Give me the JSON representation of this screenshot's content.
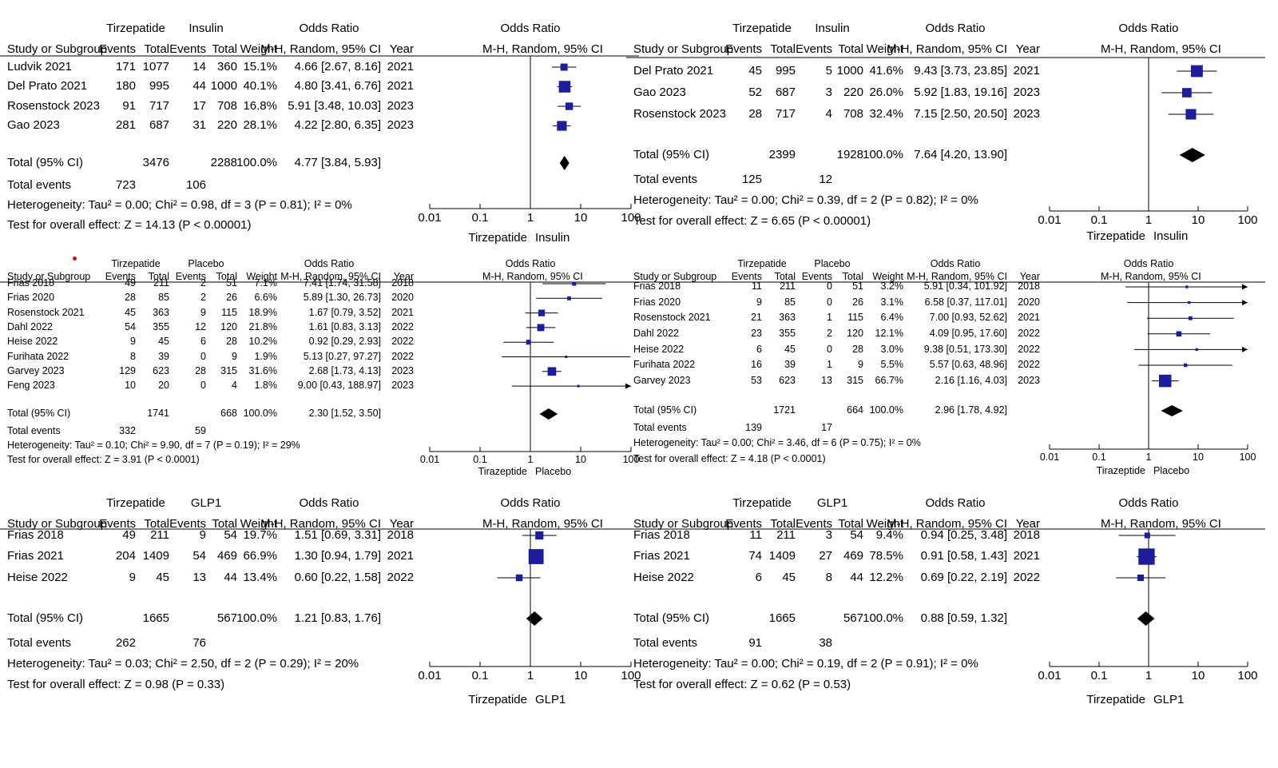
{
  "annotations": {
    "marker_color": "#e00000"
  },
  "chart_data": [
    {
      "type": "forest",
      "col_headers": {
        "study": "Study or Subgroup",
        "events": "Events",
        "total": "Total",
        "weight": "Weight",
        "method": "M-H, Random, 95% CI",
        "year": "Year",
        "or": "Odds Ratio"
      },
      "group1": "Tirzepatide",
      "group2": "Insulin",
      "studies": [
        {
          "name": "Ludvik 2021",
          "e1": "171",
          "t1": "1077",
          "e2": "14",
          "t2": "360",
          "weight_text": "15.1%",
          "ci_text": "4.66 [2.67, 8.16]",
          "year": "2021",
          "or": 4.66,
          "lo": 2.67,
          "hi": 8.16,
          "w": 15.1
        },
        {
          "name": "Del Prato 2021",
          "e1": "180",
          "t1": "995",
          "e2": "44",
          "t2": "1000",
          "weight_text": "40.1%",
          "ci_text": "4.80 [3.41, 6.76]",
          "year": "2021",
          "or": 4.8,
          "lo": 3.41,
          "hi": 6.76,
          "w": 40.1
        },
        {
          "name": "Rosenstock 2023",
          "e1": "91",
          "t1": "717",
          "e2": "17",
          "t2": "708",
          "weight_text": "16.8%",
          "ci_text": "5.91 [3.48, 10.03]",
          "year": "2023",
          "or": 5.91,
          "lo": 3.48,
          "hi": 10.03,
          "w": 16.8
        },
        {
          "name": "Gao 2023",
          "e1": "281",
          "t1": "687",
          "e2": "31",
          "t2": "220",
          "weight_text": "28.1%",
          "ci_text": "4.22 [2.80, 6.35]",
          "year": "2023",
          "or": 4.22,
          "lo": 2.8,
          "hi": 6.35,
          "w": 28.1
        }
      ],
      "total": {
        "label": "Total (95% CI)",
        "t1": "3476",
        "t2": "2288",
        "weight_text": "100.0%",
        "ci_text": "4.77 [3.84, 5.93]",
        "or": 4.77,
        "lo": 3.84,
        "hi": 5.93
      },
      "total_events": {
        "label": "Total events",
        "e1": "723",
        "e2": "106"
      },
      "heterogeneity": "Heterogeneity: Tau² = 0.00; Chi² = 0.98, df = 3 (P = 0.81); I² = 0%",
      "overall": "Test for overall effect: Z = 14.13 (P < 0.00001)",
      "axis": {
        "scale": "log",
        "range": [
          0.01,
          100
        ],
        "ticks": [
          "0.01",
          "0.1",
          "1",
          "10",
          "100"
        ],
        "favours_left": "Tirzepatide",
        "favours_right": "Insulin"
      }
    },
    {
      "type": "forest",
      "col_headers": {
        "study": "Study or Subgroup",
        "events": "Events",
        "total": "Total",
        "weight": "Weight",
        "method": "M-H, Random, 95% CI",
        "year": "Year",
        "or": "Odds Ratio"
      },
      "group1": "Tirzepatide",
      "group2": "Insulin",
      "studies": [
        {
          "name": "Del Prato 2021",
          "e1": "45",
          "t1": "995",
          "e2": "5",
          "t2": "1000",
          "weight_text": "41.6%",
          "ci_text": "9.43 [3.73, 23.85]",
          "year": "2021",
          "or": 9.43,
          "lo": 3.73,
          "hi": 23.85,
          "w": 41.6
        },
        {
          "name": "Gao 2023",
          "e1": "52",
          "t1": "687",
          "e2": "3",
          "t2": "220",
          "weight_text": "26.0%",
          "ci_text": "5.92 [1.83, 19.16]",
          "year": "2023",
          "or": 5.92,
          "lo": 1.83,
          "hi": 19.16,
          "w": 26.0
        },
        {
          "name": "Rosenstock 2023",
          "e1": "28",
          "t1": "717",
          "e2": "4",
          "t2": "708",
          "weight_text": "32.4%",
          "ci_text": "7.15 [2.50, 20.50]",
          "year": "2023",
          "or": 7.15,
          "lo": 2.5,
          "hi": 20.5,
          "w": 32.4
        }
      ],
      "total": {
        "label": "Total (95% CI)",
        "t1": "2399",
        "t2": "1928",
        "weight_text": "100.0%",
        "ci_text": "7.64 [4.20, 13.90]",
        "or": 7.64,
        "lo": 4.2,
        "hi": 13.9
      },
      "total_events": {
        "label": "Total events",
        "e1": "125",
        "e2": "12"
      },
      "heterogeneity": "Heterogeneity: Tau² = 0.00; Chi² = 0.39, df = 2 (P = 0.82); I² = 0%",
      "overall": "Test for overall effect: Z = 6.65 (P < 0.00001)",
      "axis": {
        "scale": "log",
        "range": [
          0.01,
          100
        ],
        "ticks": [
          "0.01",
          "0.1",
          "1",
          "10",
          "100"
        ],
        "favours_left": "Tirzepatide",
        "favours_right": "Insulin"
      }
    },
    {
      "type": "forest",
      "col_headers": {
        "study": "Study or Subgroup",
        "events": "Events",
        "total": "Total",
        "weight": "Weight",
        "method": "M-H, Random, 95% CI",
        "year": "Year",
        "or": "Odds Ratio"
      },
      "group1": "Tirzepatide",
      "group2": "Placebo",
      "studies": [
        {
          "name": "Frias 2018",
          "e1": "49",
          "t1": "211",
          "e2": "2",
          "t2": "51",
          "weight_text": "7.1%",
          "ci_text": "7.41 [1.74, 31.58]",
          "year": "2018",
          "or": 7.41,
          "lo": 1.74,
          "hi": 31.58,
          "w": 7.1
        },
        {
          "name": "Frias 2020",
          "e1": "28",
          "t1": "85",
          "e2": "2",
          "t2": "26",
          "weight_text": "6.6%",
          "ci_text": "5.89 [1.30, 26.73]",
          "year": "2020",
          "or": 5.89,
          "lo": 1.3,
          "hi": 26.73,
          "w": 6.6
        },
        {
          "name": "Rosenstock 2021",
          "e1": "45",
          "t1": "363",
          "e2": "9",
          "t2": "115",
          "weight_text": "18.9%",
          "ci_text": "1.67 [0.79, 3.52]",
          "year": "2021",
          "or": 1.67,
          "lo": 0.79,
          "hi": 3.52,
          "w": 18.9
        },
        {
          "name": "Dahl 2022",
          "e1": "54",
          "t1": "355",
          "e2": "12",
          "t2": "120",
          "weight_text": "21.8%",
          "ci_text": "1.61 [0.83, 3.13]",
          "year": "2022",
          "or": 1.61,
          "lo": 0.83,
          "hi": 3.13,
          "w": 21.8
        },
        {
          "name": "Heise 2022",
          "e1": "9",
          "t1": "45",
          "e2": "6",
          "t2": "28",
          "weight_text": "10.2%",
          "ci_text": "0.92 [0.29, 2.93]",
          "year": "2022",
          "or": 0.92,
          "lo": 0.29,
          "hi": 2.93,
          "w": 10.2
        },
        {
          "name": "Furihata 2022",
          "e1": "8",
          "t1": "39",
          "e2": "0",
          "t2": "9",
          "weight_text": "1.9%",
          "ci_text": "5.13 [0.27, 97.27]",
          "year": "2022",
          "or": 5.13,
          "lo": 0.27,
          "hi": 97.27,
          "w": 1.9
        },
        {
          "name": "Garvey 2023",
          "e1": "129",
          "t1": "623",
          "e2": "28",
          "t2": "315",
          "weight_text": "31.6%",
          "ci_text": "2.68 [1.73, 4.13]",
          "year": "2023",
          "or": 2.68,
          "lo": 1.73,
          "hi": 4.13,
          "w": 31.6
        },
        {
          "name": "Feng 2023",
          "e1": "10",
          "t1": "20",
          "e2": "0",
          "t2": "4",
          "weight_text": "1.8%",
          "ci_text": "9.00 [0.43, 188.97]",
          "year": "2023",
          "or": 9.0,
          "lo": 0.43,
          "hi": 188.97,
          "w": 1.8
        }
      ],
      "total": {
        "label": "Total (95% CI)",
        "t1": "1741",
        "t2": "668",
        "weight_text": "100.0%",
        "ci_text": "2.30 [1.52, 3.50]",
        "or": 2.3,
        "lo": 1.52,
        "hi": 3.5
      },
      "total_events": {
        "label": "Total events",
        "e1": "332",
        "e2": "59"
      },
      "heterogeneity": "Heterogeneity: Tau² = 0.10; Chi² = 9.90, df = 7 (P = 0.19); I² = 29%",
      "overall": "Test for overall effect: Z = 3.91 (P < 0.0001)",
      "axis": {
        "scale": "log",
        "range": [
          0.01,
          100
        ],
        "ticks": [
          "0.01",
          "0.1",
          "1",
          "10",
          "100"
        ],
        "favours_left": "Tirazeptide",
        "favours_right": "Placebo"
      }
    },
    {
      "type": "forest",
      "col_headers": {
        "study": "Study or Subgroup",
        "events": "Events",
        "total": "Total",
        "weight": "Weight",
        "method": "M-H, Random, 95% CI",
        "year": "Year",
        "or": "Odds Ratio"
      },
      "group1": "Tirzepatide",
      "group2": "Placebo",
      "studies": [
        {
          "name": "Frias 2018",
          "e1": "11",
          "t1": "211",
          "e2": "0",
          "t2": "51",
          "weight_text": "3.2%",
          "ci_text": "5.91 [0.34, 101.92]",
          "year": "2018",
          "or": 5.91,
          "lo": 0.34,
          "hi": 101.92,
          "w": 3.2
        },
        {
          "name": "Frias 2020",
          "e1": "9",
          "t1": "85",
          "e2": "0",
          "t2": "26",
          "weight_text": "3.1%",
          "ci_text": "6.58 [0.37, 117.01]",
          "year": "2020",
          "or": 6.58,
          "lo": 0.37,
          "hi": 117.01,
          "w": 3.1
        },
        {
          "name": "Rosenstock 2021",
          "e1": "21",
          "t1": "363",
          "e2": "1",
          "t2": "115",
          "weight_text": "6.4%",
          "ci_text": "7.00 [0.93, 52.62]",
          "year": "2021",
          "or": 7.0,
          "lo": 0.93,
          "hi": 52.62,
          "w": 6.4
        },
        {
          "name": "Dahl 2022",
          "e1": "23",
          "t1": "355",
          "e2": "2",
          "t2": "120",
          "weight_text": "12.1%",
          "ci_text": "4.09 [0.95, 17.60]",
          "year": "2022",
          "or": 4.09,
          "lo": 0.95,
          "hi": 17.6,
          "w": 12.1
        },
        {
          "name": "Heise 2022",
          "e1": "6",
          "t1": "45",
          "e2": "0",
          "t2": "28",
          "weight_text": "3.0%",
          "ci_text": "9.38 [0.51, 173.30]",
          "year": "2022",
          "or": 9.38,
          "lo": 0.51,
          "hi": 173.3,
          "w": 3.0
        },
        {
          "name": "Furihata 2022",
          "e1": "16",
          "t1": "39",
          "e2": "1",
          "t2": "9",
          "weight_text": "5.5%",
          "ci_text": "5.57 [0.63, 48.96]",
          "year": "2022",
          "or": 5.57,
          "lo": 0.63,
          "hi": 48.96,
          "w": 5.5
        },
        {
          "name": "Garvey 2023",
          "e1": "53",
          "t1": "623",
          "e2": "13",
          "t2": "315",
          "weight_text": "66.7%",
          "ci_text": "2.16 [1.16, 4.03]",
          "year": "2023",
          "or": 2.16,
          "lo": 1.16,
          "hi": 4.03,
          "w": 66.7
        }
      ],
      "total": {
        "label": "Total (95% CI)",
        "t1": "1721",
        "t2": "664",
        "weight_text": "100.0%",
        "ci_text": "2.96 [1.78, 4.92]",
        "or": 2.96,
        "lo": 1.78,
        "hi": 4.92
      },
      "total_events": {
        "label": "Total events",
        "e1": "139",
        "e2": "17"
      },
      "heterogeneity": "Heterogeneity: Tau² = 0.00; Chi² = 3.46, df = 6 (P = 0.75); I² = 0%",
      "overall": "Test for overall effect: Z = 4.18 (P < 0.0001)",
      "axis": {
        "scale": "log",
        "range": [
          0.01,
          100
        ],
        "ticks": [
          "0.01",
          "0.1",
          "1",
          "10",
          "100"
        ],
        "favours_left": "Tirazeptide",
        "favours_right": "Placebo"
      }
    },
    {
      "type": "forest",
      "col_headers": {
        "study": "Study or Subgroup",
        "events": "Events",
        "total": "Total",
        "weight": "Weight",
        "method": "M-H, Random, 95% CI",
        "year": "Year",
        "or": "Odds Ratio"
      },
      "group1": "Tirzepatide",
      "group2": "GLP1",
      "studies": [
        {
          "name": "Frias 2018",
          "e1": "49",
          "t1": "211",
          "e2": "9",
          "t2": "54",
          "weight_text": "19.7%",
          "ci_text": "1.51 [0.69, 3.31]",
          "year": "2018",
          "or": 1.51,
          "lo": 0.69,
          "hi": 3.31,
          "w": 19.7
        },
        {
          "name": "Frias 2021",
          "e1": "204",
          "t1": "1409",
          "e2": "54",
          "t2": "469",
          "weight_text": "66.9%",
          "ci_text": "1.30 [0.94, 1.79]",
          "year": "2021",
          "or": 1.3,
          "lo": 0.94,
          "hi": 1.79,
          "w": 66.9
        },
        {
          "name": "Heise 2022",
          "e1": "9",
          "t1": "45",
          "e2": "13",
          "t2": "44",
          "weight_text": "13.4%",
          "ci_text": "0.60 [0.22, 1.58]",
          "year": "2022",
          "or": 0.6,
          "lo": 0.22,
          "hi": 1.58,
          "w": 13.4
        }
      ],
      "total": {
        "label": "Total (95% CI)",
        "t1": "1665",
        "t2": "567",
        "weight_text": "100.0%",
        "ci_text": "1.21 [0.83, 1.76]",
        "or": 1.21,
        "lo": 0.83,
        "hi": 1.76
      },
      "total_events": {
        "label": "Total events",
        "e1": "262",
        "e2": "76"
      },
      "heterogeneity": "Heterogeneity: Tau² = 0.03; Chi² = 2.50, df = 2 (P = 0.29); I² = 20%",
      "overall": "Test for overall effect: Z = 0.98 (P = 0.33)",
      "axis": {
        "scale": "log",
        "range": [
          0.01,
          100
        ],
        "ticks": [
          "0.01",
          "0.1",
          "1",
          "10",
          "100"
        ],
        "favours_left": "Tirzepatide",
        "favours_right": "GLP1"
      }
    },
    {
      "type": "forest",
      "col_headers": {
        "study": "Study or Subgroup",
        "events": "Events",
        "total": "Total",
        "weight": "Weight",
        "method": "M-H, Random, 95% CI",
        "year": "Year",
        "or": "Odds Ratio"
      },
      "group1": "Tirzepatide",
      "group2": "GLP1",
      "studies": [
        {
          "name": "Frias 2018",
          "e1": "11",
          "t1": "211",
          "e2": "3",
          "t2": "54",
          "weight_text": "9.4%",
          "ci_text": "0.94 [0.25, 3.48]",
          "year": "2018",
          "or": 0.94,
          "lo": 0.25,
          "hi": 3.48,
          "w": 9.4
        },
        {
          "name": "Frias 2021",
          "e1": "74",
          "t1": "1409",
          "e2": "27",
          "t2": "469",
          "weight_text": "78.5%",
          "ci_text": "0.91 [0.58, 1.43]",
          "year": "2021",
          "or": 0.91,
          "lo": 0.58,
          "hi": 1.43,
          "w": 78.5
        },
        {
          "name": "Heise 2022",
          "e1": "6",
          "t1": "45",
          "e2": "8",
          "t2": "44",
          "weight_text": "12.2%",
          "ci_text": "0.69 [0.22, 2.19]",
          "year": "2022",
          "or": 0.69,
          "lo": 0.22,
          "hi": 2.19,
          "w": 12.2
        }
      ],
      "total": {
        "label": "Total (95% CI)",
        "t1": "1665",
        "t2": "567",
        "weight_text": "100.0%",
        "ci_text": "0.88 [0.59, 1.32]",
        "or": 0.88,
        "lo": 0.59,
        "hi": 1.32
      },
      "total_events": {
        "label": "Total events",
        "e1": "91",
        "e2": "38"
      },
      "heterogeneity": "Heterogeneity: Tau² = 0.00; Chi² = 0.19, df = 2 (P = 0.91); I² = 0%",
      "overall": "Test for overall effect: Z = 0.62 (P = 0.53)",
      "axis": {
        "scale": "log",
        "range": [
          0.01,
          100
        ],
        "ticks": [
          "0.01",
          "0.1",
          "1",
          "10",
          "100"
        ],
        "favours_left": "Tirzepatide",
        "favours_right": "GLP1"
      }
    }
  ]
}
